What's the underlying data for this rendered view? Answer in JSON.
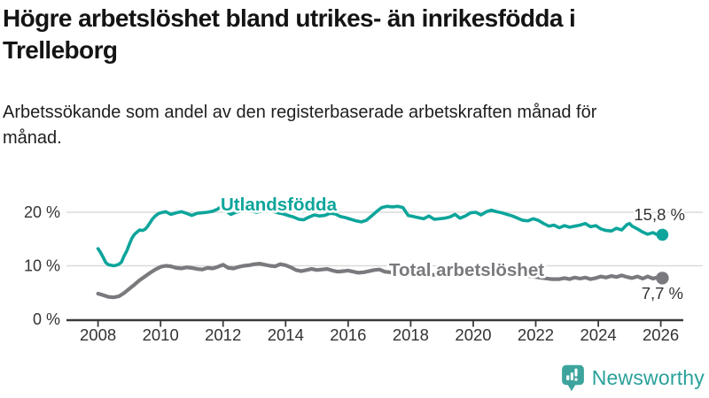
{
  "header": {
    "title": "Högre arbetslöshet bland utrikes- än inrikesfödda i Trelleborg",
    "subtitle": "Arbetssökande som andel av den registerbaserade arbetskraften månad för månad."
  },
  "footer": {
    "brand": "Newsworthy",
    "logo_icon": "newsworthy-speech-bubble-bar-chart-icon"
  },
  "colors": {
    "foreign_born_line": "#0da59b",
    "total_line": "#7a7a7e",
    "grid": "#dadada",
    "axis": "#3a3a3a",
    "tick_text": "#333333",
    "value_label_text": "#333333",
    "brand_teal": "#2aa19a",
    "logo_icon_teal": "#3da49d"
  },
  "chart_data": {
    "type": "line",
    "title": "Högre arbetslöshet bland utrikes- än inrikesfödda i Trelleborg",
    "subtitle": "Arbetssökande som andel av den registerbaserade arbetskraften månad för månad.",
    "grid": "horizontal-only",
    "x_axis": {
      "range": [
        2007.0,
        2026.7
      ],
      "ticks": [
        {
          "value": 2008,
          "label": "2008"
        },
        {
          "value": 2010,
          "label": "2010"
        },
        {
          "value": 2012,
          "label": "2012"
        },
        {
          "value": 2014,
          "label": "2014"
        },
        {
          "value": 2016,
          "label": "2016"
        },
        {
          "value": 2018,
          "label": "2018"
        },
        {
          "value": 2020,
          "label": "2020"
        },
        {
          "value": 2022,
          "label": "2022"
        },
        {
          "value": 2024,
          "label": "2024"
        },
        {
          "value": 2026,
          "label": "2026"
        }
      ]
    },
    "y_axis": {
      "range": [
        0,
        23
      ],
      "unit": "%",
      "ticks": [
        {
          "value": 20,
          "label": "20 %"
        },
        {
          "value": 10,
          "label": "10 %"
        },
        {
          "value": 0,
          "label": "0 %"
        }
      ]
    },
    "series": [
      {
        "name": "Utlandsfödda",
        "color": "#0da59b",
        "end_label": "15,8 %",
        "end_value": 15.8,
        "points": [
          [
            2008.0,
            13.2
          ],
          [
            2008.08,
            12.5
          ],
          [
            2008.17,
            11.5
          ],
          [
            2008.25,
            10.6
          ],
          [
            2008.33,
            10.2
          ],
          [
            2008.42,
            10.1
          ],
          [
            2008.5,
            10.0
          ],
          [
            2008.58,
            10.1
          ],
          [
            2008.67,
            10.3
          ],
          [
            2008.75,
            10.7
          ],
          [
            2008.83,
            11.8
          ],
          [
            2008.92,
            12.8
          ],
          [
            2009.0,
            14.0
          ],
          [
            2009.08,
            15.1
          ],
          [
            2009.17,
            15.9
          ],
          [
            2009.25,
            16.3
          ],
          [
            2009.33,
            16.7
          ],
          [
            2009.42,
            16.6
          ],
          [
            2009.5,
            16.8
          ],
          [
            2009.58,
            17.3
          ],
          [
            2009.67,
            18.1
          ],
          [
            2009.75,
            18.8
          ],
          [
            2009.83,
            19.3
          ],
          [
            2009.92,
            19.7
          ],
          [
            2010.0,
            19.9
          ],
          [
            2010.17,
            20.1
          ],
          [
            2010.33,
            19.6
          ],
          [
            2010.5,
            19.9
          ],
          [
            2010.67,
            20.1
          ],
          [
            2010.83,
            19.8
          ],
          [
            2011.0,
            19.4
          ],
          [
            2011.17,
            19.8
          ],
          [
            2011.33,
            19.9
          ],
          [
            2011.5,
            20.0
          ],
          [
            2011.67,
            20.2
          ],
          [
            2011.83,
            20.6
          ],
          [
            2012.0,
            21.4
          ],
          [
            2012.08,
            20.7
          ],
          [
            2012.17,
            19.9
          ],
          [
            2012.25,
            19.6
          ],
          [
            2012.42,
            20.0
          ],
          [
            2012.58,
            20.2
          ],
          [
            2012.75,
            20.4
          ],
          [
            2012.92,
            20.2
          ],
          [
            2013.08,
            20.0
          ],
          [
            2013.25,
            20.3
          ],
          [
            2013.42,
            20.5
          ],
          [
            2013.58,
            20.2
          ],
          [
            2013.75,
            19.9
          ],
          [
            2013.92,
            19.7
          ],
          [
            2014.08,
            19.4
          ],
          [
            2014.25,
            19.1
          ],
          [
            2014.42,
            18.7
          ],
          [
            2014.58,
            18.6
          ],
          [
            2014.75,
            19.1
          ],
          [
            2014.92,
            19.5
          ],
          [
            2015.08,
            19.3
          ],
          [
            2015.25,
            19.4
          ],
          [
            2015.42,
            19.8
          ],
          [
            2015.58,
            19.7
          ],
          [
            2015.75,
            19.2
          ],
          [
            2015.92,
            19.0
          ],
          [
            2016.08,
            18.7
          ],
          [
            2016.25,
            18.4
          ],
          [
            2016.42,
            18.2
          ],
          [
            2016.58,
            18.5
          ],
          [
            2016.75,
            19.3
          ],
          [
            2016.92,
            20.2
          ],
          [
            2017.08,
            20.9
          ],
          [
            2017.25,
            21.1
          ],
          [
            2017.42,
            21.0
          ],
          [
            2017.58,
            21.1
          ],
          [
            2017.75,
            20.9
          ],
          [
            2017.92,
            19.4
          ],
          [
            2018.08,
            19.2
          ],
          [
            2018.25,
            19.0
          ],
          [
            2018.42,
            18.8
          ],
          [
            2018.58,
            19.3
          ],
          [
            2018.75,
            18.7
          ],
          [
            2018.92,
            18.8
          ],
          [
            2019.08,
            18.9
          ],
          [
            2019.25,
            19.1
          ],
          [
            2019.42,
            19.6
          ],
          [
            2019.58,
            18.9
          ],
          [
            2019.75,
            19.3
          ],
          [
            2019.92,
            19.9
          ],
          [
            2020.08,
            20.0
          ],
          [
            2020.25,
            19.5
          ],
          [
            2020.42,
            20.1
          ],
          [
            2020.58,
            20.4
          ],
          [
            2020.75,
            20.1
          ],
          [
            2020.92,
            19.9
          ],
          [
            2021.08,
            19.6
          ],
          [
            2021.25,
            19.3
          ],
          [
            2021.42,
            18.9
          ],
          [
            2021.58,
            18.5
          ],
          [
            2021.75,
            18.4
          ],
          [
            2021.92,
            18.8
          ],
          [
            2022.08,
            18.5
          ],
          [
            2022.25,
            17.9
          ],
          [
            2022.42,
            17.4
          ],
          [
            2022.58,
            17.6
          ],
          [
            2022.75,
            17.1
          ],
          [
            2022.92,
            17.5
          ],
          [
            2023.08,
            17.2
          ],
          [
            2023.25,
            17.4
          ],
          [
            2023.42,
            17.6
          ],
          [
            2023.58,
            17.9
          ],
          [
            2023.75,
            17.3
          ],
          [
            2023.92,
            17.5
          ],
          [
            2024.08,
            16.9
          ],
          [
            2024.25,
            16.6
          ],
          [
            2024.42,
            16.5
          ],
          [
            2024.58,
            17.0
          ],
          [
            2024.75,
            16.7
          ],
          [
            2024.92,
            17.7
          ],
          [
            2025.0,
            17.9
          ],
          [
            2025.08,
            17.4
          ],
          [
            2025.25,
            16.9
          ],
          [
            2025.42,
            16.3
          ],
          [
            2025.58,
            15.9
          ],
          [
            2025.75,
            16.2
          ],
          [
            2025.92,
            15.7
          ],
          [
            2026.05,
            15.8
          ]
        ]
      },
      {
        "name": "Total arbetslöshet",
        "color": "#7a7a7e",
        "end_label": "7,7 %",
        "end_value": 7.7,
        "points": [
          [
            2008.0,
            4.8
          ],
          [
            2008.17,
            4.5
          ],
          [
            2008.33,
            4.2
          ],
          [
            2008.5,
            4.1
          ],
          [
            2008.67,
            4.3
          ],
          [
            2008.83,
            4.9
          ],
          [
            2009.0,
            5.7
          ],
          [
            2009.17,
            6.5
          ],
          [
            2009.33,
            7.3
          ],
          [
            2009.5,
            8.0
          ],
          [
            2009.67,
            8.7
          ],
          [
            2009.83,
            9.3
          ],
          [
            2010.0,
            9.8
          ],
          [
            2010.17,
            10.0
          ],
          [
            2010.33,
            9.9
          ],
          [
            2010.5,
            9.6
          ],
          [
            2010.67,
            9.5
          ],
          [
            2010.83,
            9.7
          ],
          [
            2011.0,
            9.6
          ],
          [
            2011.17,
            9.4
          ],
          [
            2011.33,
            9.3
          ],
          [
            2011.5,
            9.6
          ],
          [
            2011.67,
            9.5
          ],
          [
            2011.83,
            9.8
          ],
          [
            2012.0,
            10.2
          ],
          [
            2012.17,
            9.6
          ],
          [
            2012.33,
            9.5
          ],
          [
            2012.5,
            9.8
          ],
          [
            2012.67,
            10.0
          ],
          [
            2012.83,
            10.1
          ],
          [
            2013.0,
            10.3
          ],
          [
            2013.17,
            10.4
          ],
          [
            2013.33,
            10.2
          ],
          [
            2013.5,
            10.0
          ],
          [
            2013.67,
            9.9
          ],
          [
            2013.83,
            10.3
          ],
          [
            2014.0,
            10.1
          ],
          [
            2014.17,
            9.7
          ],
          [
            2014.33,
            9.2
          ],
          [
            2014.5,
            9.0
          ],
          [
            2014.67,
            9.2
          ],
          [
            2014.83,
            9.4
          ],
          [
            2015.0,
            9.2
          ],
          [
            2015.17,
            9.3
          ],
          [
            2015.33,
            9.4
          ],
          [
            2015.5,
            9.1
          ],
          [
            2015.67,
            8.9
          ],
          [
            2015.83,
            9.0
          ],
          [
            2016.0,
            9.1
          ],
          [
            2016.17,
            8.9
          ],
          [
            2016.33,
            8.7
          ],
          [
            2016.5,
            8.8
          ],
          [
            2016.67,
            9.0
          ],
          [
            2016.83,
            9.2
          ],
          [
            2017.0,
            9.3
          ],
          [
            2017.17,
            8.9
          ],
          [
            2017.33,
            8.8
          ],
          [
            2017.5,
            8.7
          ],
          [
            2017.75,
            8.6
          ],
          [
            2018.0,
            8.5
          ],
          [
            2018.33,
            8.4
          ],
          [
            2018.67,
            8.3
          ],
          [
            2019.0,
            8.4
          ],
          [
            2019.33,
            8.5
          ],
          [
            2019.67,
            8.7
          ],
          [
            2020.0,
            9.0
          ],
          [
            2020.25,
            9.7
          ],
          [
            2020.5,
            9.9
          ],
          [
            2020.75,
            9.7
          ],
          [
            2021.0,
            9.3
          ],
          [
            2021.25,
            8.9
          ],
          [
            2021.5,
            8.5
          ],
          [
            2021.75,
            8.1
          ],
          [
            2022.0,
            7.9
          ],
          [
            2022.25,
            7.7
          ],
          [
            2022.5,
            7.5
          ],
          [
            2022.75,
            7.5
          ],
          [
            2022.92,
            7.7
          ],
          [
            2023.08,
            7.5
          ],
          [
            2023.25,
            7.8
          ],
          [
            2023.42,
            7.6
          ],
          [
            2023.58,
            7.8
          ],
          [
            2023.75,
            7.5
          ],
          [
            2023.92,
            7.7
          ],
          [
            2024.08,
            8.0
          ],
          [
            2024.25,
            7.8
          ],
          [
            2024.42,
            8.1
          ],
          [
            2024.58,
            7.9
          ],
          [
            2024.75,
            8.2
          ],
          [
            2024.92,
            7.9
          ],
          [
            2025.08,
            7.7
          ],
          [
            2025.25,
            8.0
          ],
          [
            2025.42,
            7.6
          ],
          [
            2025.58,
            8.0
          ],
          [
            2025.75,
            7.6
          ],
          [
            2025.92,
            7.9
          ],
          [
            2026.05,
            7.7
          ]
        ]
      }
    ],
    "legend_position": "inline-labels-on-lines"
  }
}
